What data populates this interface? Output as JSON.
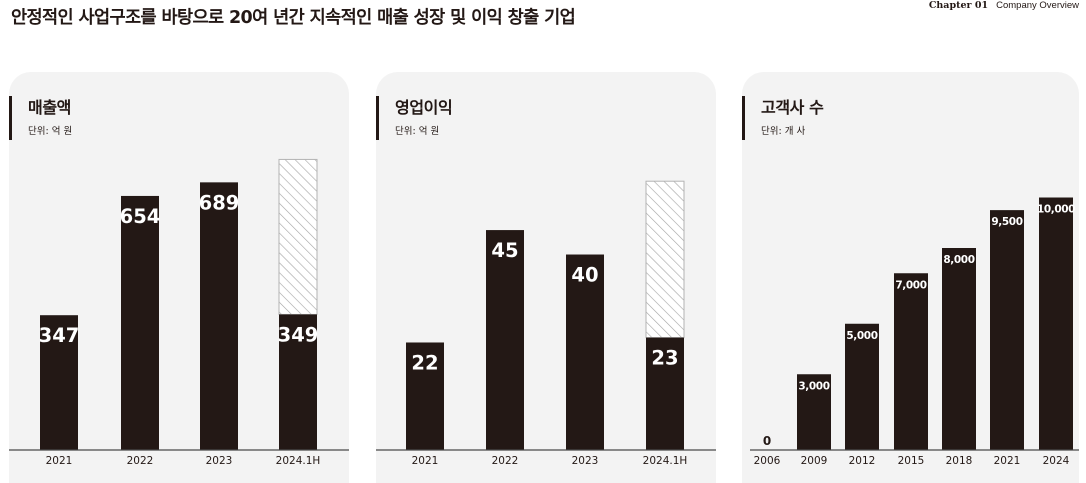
{
  "header": {
    "headline": "안정적인 사업구조를 바탕으로 20여 년간 지속적인 매출 성장 및 이익 창출 기업",
    "chapter_label": "Chapter 01",
    "chapter_title": "Company Overview"
  },
  "colors": {
    "bar": "#231815",
    "panel_bg": "#f3f3f3",
    "hatch": "#a3a3a3",
    "text": "#231815"
  },
  "chart_data": [
    {
      "type": "bar",
      "title": "매출액",
      "unit": "단위: 억 원",
      "categories": [
        "2021",
        "2022",
        "2023",
        "2024.1H"
      ],
      "values": [
        347,
        654,
        689,
        349
      ],
      "value_labels": [
        "347",
        "654",
        "689",
        "349"
      ],
      "projected_extension": {
        "category": "2024.1H",
        "top_value": 748,
        "style": "hatched"
      },
      "ylim": [
        0,
        780
      ],
      "grid": false,
      "label_style": "large"
    },
    {
      "type": "bar",
      "title": "영업이익",
      "unit": "단위: 억 원",
      "categories": [
        "2021",
        "2022",
        "2023",
        "2024.1H"
      ],
      "values": [
        22,
        45,
        40,
        23
      ],
      "value_labels": [
        "22",
        "45",
        "40",
        "23"
      ],
      "projected_extension": {
        "category": "2024.1H",
        "top_value": 55,
        "style": "hatched"
      },
      "ylim": [
        0,
        62
      ],
      "grid": false,
      "label_style": "large"
    },
    {
      "type": "bar",
      "title": "고객사 수",
      "unit": "단위: 개 사",
      "categories": [
        "2006",
        "2009",
        "2012",
        "2015",
        "2018",
        "2021",
        "2024"
      ],
      "values": [
        0,
        3000,
        5000,
        7000,
        8000,
        9500,
        10000
      ],
      "value_labels": [
        "0",
        "3,000",
        "5,000",
        "7,000",
        "8,000",
        "9,500",
        "10,000"
      ],
      "ylim": [
        0,
        12000
      ],
      "grid": false,
      "label_style": "small"
    }
  ]
}
